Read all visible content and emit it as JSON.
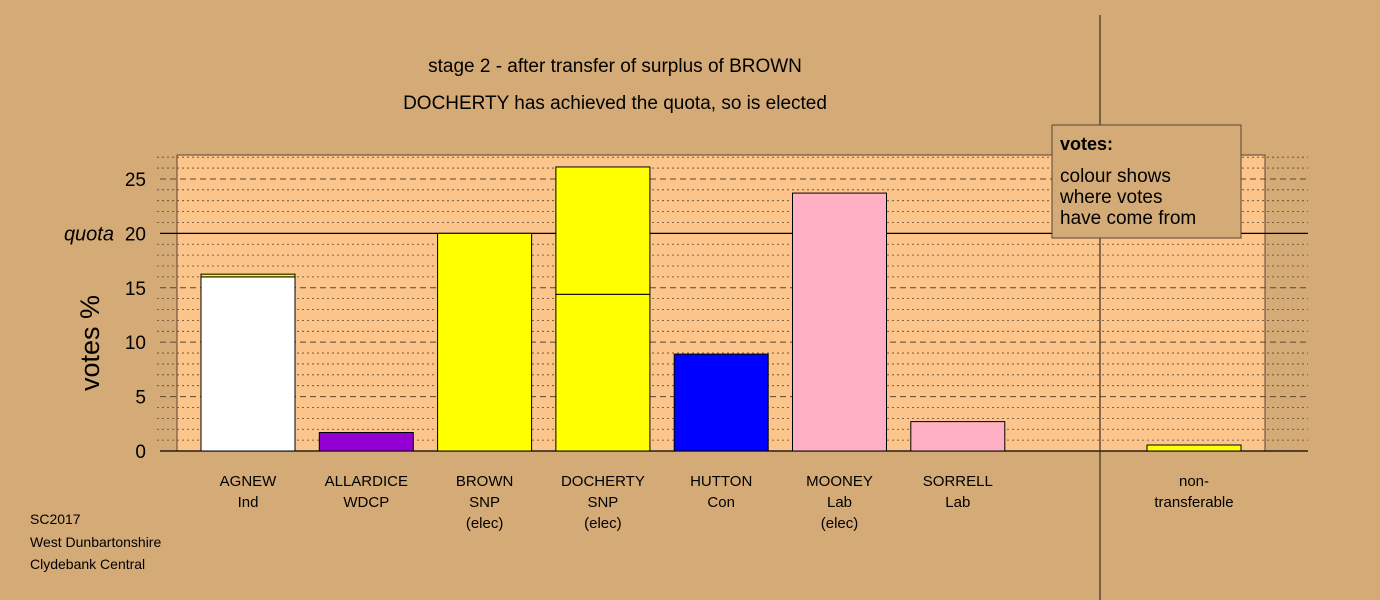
{
  "chart_data": {
    "type": "bar",
    "title": "stage 2 - after transfer of surplus of BROWN",
    "subtitle": "DOCHERTY has achieved the quota, so is elected",
    "ylabel": "votes %",
    "ylim": [
      0,
      27.2
    ],
    "yticks": [
      0,
      5,
      10,
      15,
      20,
      25
    ],
    "quota": 20,
    "quota_label": "quota",
    "colors": {
      "background": "#d4aa76",
      "plot_area": "#fbc58b",
      "Ind": "#ffffff",
      "WDCP": "#9400d3",
      "SNP": "#ffff00",
      "Con": "#0000ff",
      "Lab": "#ffb0c4"
    },
    "categories": [
      {
        "name": "AGNEW",
        "party": "Ind",
        "status": ""
      },
      {
        "name": "ALLARDICE",
        "party": "WDCP",
        "status": ""
      },
      {
        "name": "BROWN",
        "party": "SNP",
        "status": "(elec)"
      },
      {
        "name": "DOCHERTY",
        "party": "SNP",
        "status": "(elec)"
      },
      {
        "name": "HUTTON",
        "party": "Con",
        "status": ""
      },
      {
        "name": "MOONEY",
        "party": "Lab",
        "status": "(elec)"
      },
      {
        "name": "SORRELL",
        "party": "Lab",
        "status": ""
      }
    ],
    "bars": [
      {
        "segments": [
          {
            "from": "Ind",
            "value": 16.0
          },
          {
            "from": "SNP",
            "value": 0.25
          }
        ]
      },
      {
        "segments": [
          {
            "from": "WDCP",
            "value": 1.7
          }
        ]
      },
      {
        "segments": [
          {
            "from": "SNP",
            "value": 20.0
          }
        ]
      },
      {
        "segments": [
          {
            "from": "SNP",
            "value": 14.4
          },
          {
            "from": "SNP",
            "value": 11.7
          }
        ]
      },
      {
        "segments": [
          {
            "from": "Con",
            "value": 8.9
          }
        ]
      },
      {
        "segments": [
          {
            "from": "Lab",
            "value": 23.7
          }
        ]
      },
      {
        "segments": [
          {
            "from": "Lab",
            "value": 2.7
          }
        ]
      }
    ],
    "non_transferable": {
      "label_line1": "non-",
      "label_line2": "transferable",
      "segments": [
        {
          "from": "SNP",
          "value": 0.55
        }
      ]
    },
    "legend": {
      "title": "votes:",
      "lines": [
        "colour shows",
        "where votes",
        "have come from"
      ],
      "placement": "top-right"
    }
  },
  "footer": {
    "line1": "SC2017",
    "line2": "West Dunbartonshire",
    "line3": "Clydebank Central"
  }
}
